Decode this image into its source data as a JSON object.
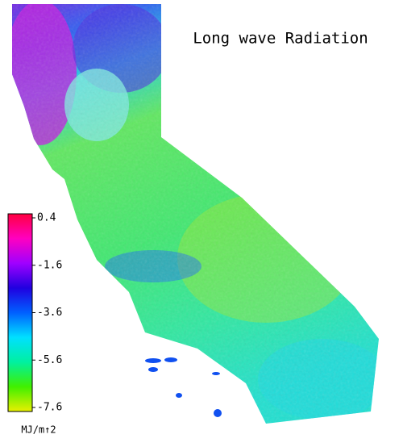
{
  "title": "Long wave Radiation",
  "colorbar": {
    "lim": [
      -7.6,
      0.4
    ],
    "ticks": [
      0.4,
      -1.6,
      -3.6,
      -5.6,
      -7.6
    ],
    "unit": "MJ/m↑2",
    "colors": [
      "#e8f000",
      "#40f000",
      "#00f0a0",
      "#00e0ff",
      "#0060ff",
      "#2000e0",
      "#a000ff",
      "#ff00c0",
      "#ff0040"
    ]
  }
}
